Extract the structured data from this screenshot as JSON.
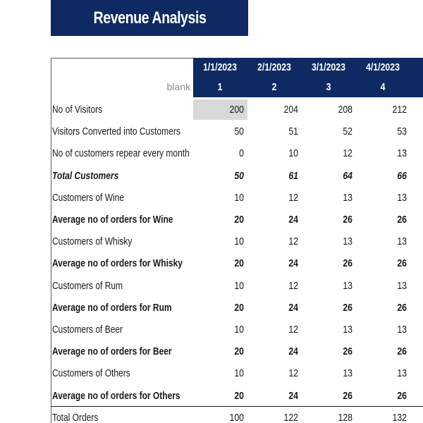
{
  "title": "Revenue Analysis",
  "header": {
    "blank_label": "blank",
    "columns": [
      {
        "date": "1/1/2023",
        "num": "1"
      },
      {
        "date": "2/1/2023",
        "num": "2"
      },
      {
        "date": "3/1/2023",
        "num": "3"
      },
      {
        "date": "4/1/2023",
        "num": "4"
      }
    ]
  },
  "rows": [
    {
      "label": "No of Visitors",
      "style": "normal",
      "values": [
        "200",
        "204",
        "208",
        "212"
      ]
    },
    {
      "label": "Visitors Converted into Customers",
      "style": "normal",
      "values": [
        "50",
        "51",
        "52",
        "53"
      ]
    },
    {
      "label": "No of customers repear every month",
      "style": "normal",
      "values": [
        "0",
        "10",
        "12",
        "13"
      ]
    },
    {
      "label": "Total Customers",
      "style": "bolditalic",
      "values": [
        "50",
        "61",
        "64",
        "66"
      ]
    },
    {
      "label": "Customers of Wine",
      "style": "normal",
      "values": [
        "10",
        "12",
        "13",
        "13"
      ]
    },
    {
      "label": "Average no of orders for Wine",
      "style": "bold",
      "values": [
        "20",
        "24",
        "26",
        "26"
      ]
    },
    {
      "label": "Customers of Whisky",
      "style": "normal",
      "values": [
        "10",
        "12",
        "13",
        "13"
      ]
    },
    {
      "label": "Average no of orders for Whisky",
      "style": "bold",
      "values": [
        "20",
        "24",
        "26",
        "26"
      ]
    },
    {
      "label": "Customers of Rum",
      "style": "normal",
      "values": [
        "10",
        "12",
        "13",
        "13"
      ]
    },
    {
      "label": "Average no of orders for Rum",
      "style": "bold",
      "values": [
        "20",
        "24",
        "26",
        "26"
      ]
    },
    {
      "label": "Customers of Beer",
      "style": "normal",
      "values": [
        "10",
        "12",
        "13",
        "13"
      ]
    },
    {
      "label": "Average no of orders for Beer",
      "style": "bold",
      "values": [
        "20",
        "24",
        "26",
        "26"
      ]
    },
    {
      "label": "Customers of Others",
      "style": "normal",
      "values": [
        "10",
        "12",
        "13",
        "13"
      ]
    },
    {
      "label": "Average no of orders for Others",
      "style": "bold",
      "values": [
        "20",
        "24",
        "26",
        "26"
      ]
    },
    {
      "label": "Total Orders",
      "style": "normal",
      "values": [
        "100",
        "122",
        "128",
        "132"
      ]
    }
  ],
  "colors": {
    "header_bg": "#0f2a63",
    "input_cell_bg": "#d9d9d9"
  }
}
